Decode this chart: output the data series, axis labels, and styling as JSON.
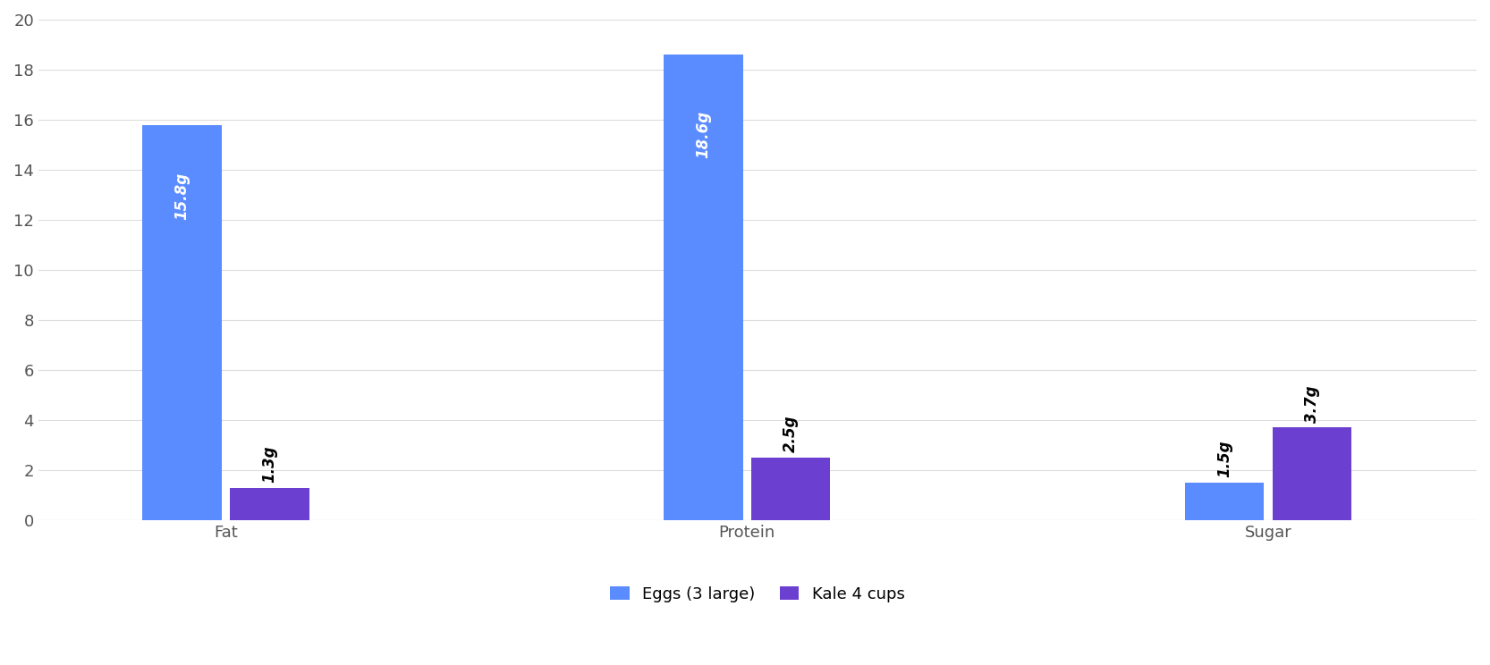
{
  "categories": [
    "Fat",
    "Protein",
    "Sugar"
  ],
  "eggs_values": [
    15.8,
    18.6,
    1.5
  ],
  "kale_values": [
    1.3,
    2.5,
    3.7
  ],
  "eggs_label": "Eggs (3 large)",
  "kale_label": "Kale 4 cups",
  "eggs_color": "#5b8cff",
  "kale_color": "#6b3fcf",
  "background_color": "#ffffff",
  "ylim": [
    0,
    20
  ],
  "yticks": [
    0,
    2,
    4,
    6,
    8,
    10,
    12,
    14,
    16,
    18,
    20
  ],
  "bar_width": 0.38,
  "group_centers": [
    1.0,
    3.5,
    6.0
  ],
  "bar_gap": 0.04,
  "label_fontsize": 13,
  "tick_fontsize": 13,
  "legend_fontsize": 13,
  "annotation_fontsize": 12,
  "annotation_threshold": 3.0
}
